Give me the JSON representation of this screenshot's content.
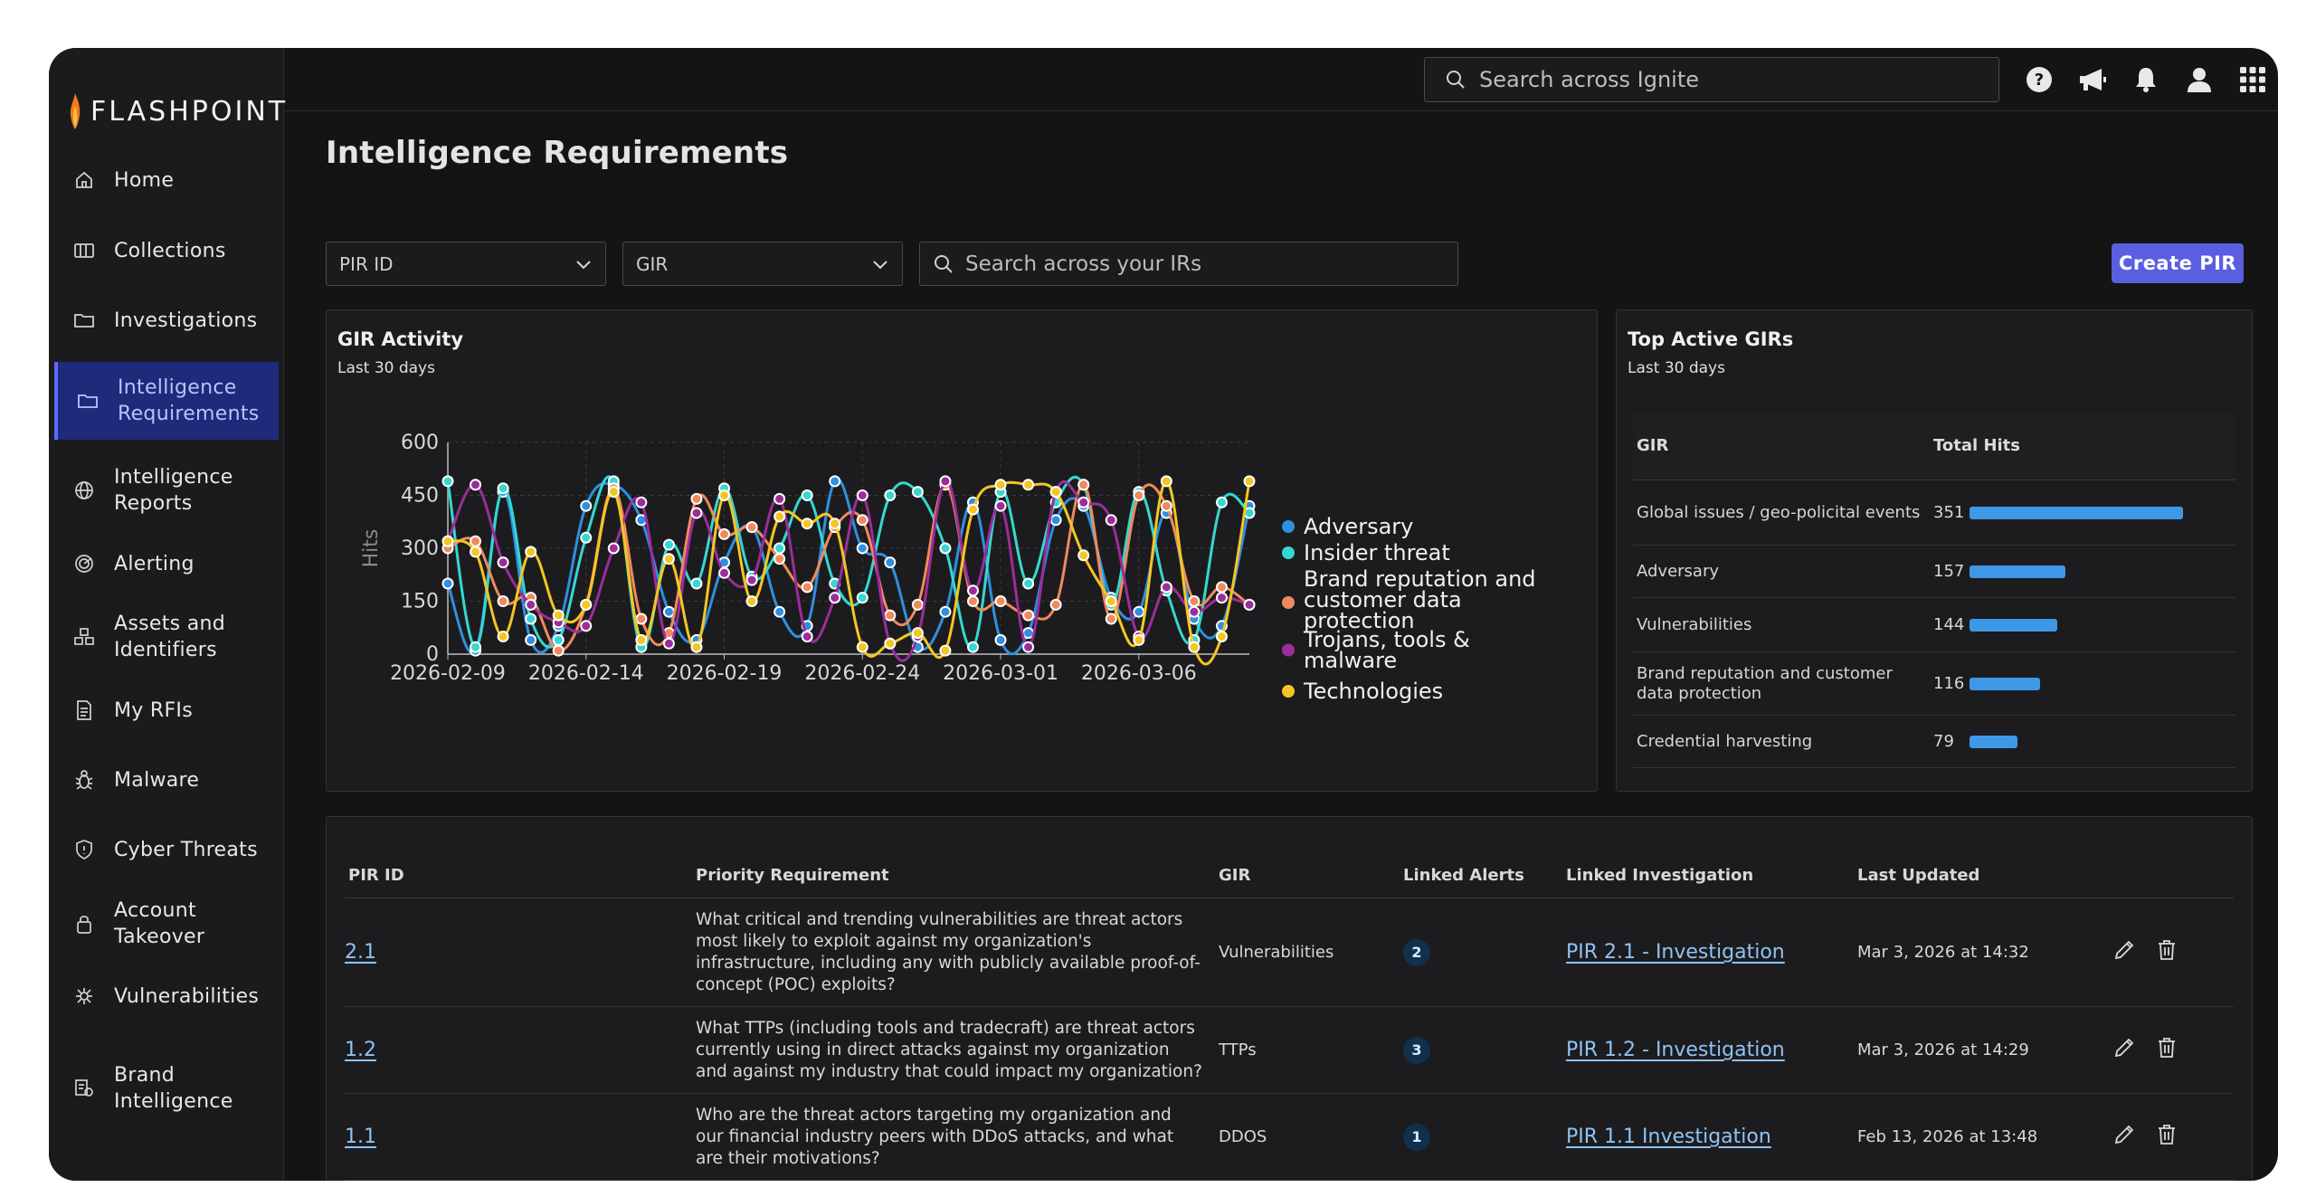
{
  "brand": {
    "name": "FLASHPOINT"
  },
  "sidebar": {
    "items": [
      {
        "label": "Home",
        "icon": "home-icon"
      },
      {
        "label": "Collections",
        "icon": "collections-icon"
      },
      {
        "label": "Investigations",
        "icon": "folder-icon"
      },
      {
        "label": "Intelligence Requirements",
        "icon": "folder-icon",
        "active": true
      },
      {
        "label": "Intelligence Reports",
        "icon": "globe-icon"
      },
      {
        "label": "Alerting",
        "icon": "alerting-icon"
      },
      {
        "label": "Assets and Identifiers",
        "icon": "assets-icon"
      },
      {
        "label": "My RFIs",
        "icon": "document-icon"
      },
      {
        "label": "Malware",
        "icon": "bug-icon"
      },
      {
        "label": "Cyber Threats",
        "icon": "shield-icon"
      },
      {
        "label": "Account Takeover",
        "icon": "lock-icon"
      },
      {
        "label": "Vulnerabilities",
        "icon": "vulnerability-icon"
      },
      {
        "label": "Brand Intelligence",
        "icon": "brand-icon"
      }
    ]
  },
  "topbar": {
    "search_placeholder": "Search across Ignite",
    "icons": [
      "help-icon",
      "announcement-icon",
      "bell-icon",
      "user-icon",
      "apps-grid-icon"
    ]
  },
  "page": {
    "title": "Intelligence Requirements"
  },
  "filters": {
    "pir_id": "PIR ID",
    "gir": "GIR",
    "search_placeholder": "Search across your IRs",
    "create_button": "Create PIR"
  },
  "gir_activity": {
    "title": "GIR Activity",
    "subtitle": "Last 30 days"
  },
  "chart_data": {
    "type": "line",
    "ylabel": "Hits",
    "ylim": [
      0,
      600
    ],
    "yticks": [
      0,
      150,
      300,
      450,
      600
    ],
    "xticks": [
      "2026-02-09",
      "2026-02-14",
      "2026-02-19",
      "2026-02-24",
      "2026-03-01",
      "2026-03-06"
    ],
    "x": [
      "2026-02-09",
      "2026-02-10",
      "2026-02-11",
      "2026-02-12",
      "2026-02-13",
      "2026-02-14",
      "2026-02-15",
      "2026-02-16",
      "2026-02-17",
      "2026-02-18",
      "2026-02-19",
      "2026-02-20",
      "2026-02-21",
      "2026-02-22",
      "2026-02-23",
      "2026-02-24",
      "2026-02-25",
      "2026-02-26",
      "2026-02-27",
      "2026-02-28",
      "2026-03-01",
      "2026-03-02",
      "2026-03-03",
      "2026-03-04",
      "2026-03-05",
      "2026-03-06",
      "2026-03-07",
      "2026-03-08",
      "2026-03-09",
      "2026-03-10"
    ],
    "legend_position": "right",
    "series": [
      {
        "name": "Adversary",
        "color": "#2f8fe0",
        "values": [
          200,
          10,
          460,
          40,
          80,
          420,
          480,
          380,
          120,
          40,
          260,
          360,
          120,
          80,
          490,
          300,
          260,
          20,
          120,
          430,
          40,
          60,
          380,
          420,
          160,
          120,
          400,
          100,
          80,
          420
        ]
      },
      {
        "name": "Insider threat",
        "color": "#36d7d0",
        "values": [
          490,
          20,
          470,
          100,
          40,
          330,
          490,
          20,
          310,
          200,
          470,
          220,
          300,
          450,
          200,
          160,
          450,
          460,
          300,
          20,
          460,
          200,
          430,
          480,
          140,
          460,
          180,
          40,
          430,
          400
        ]
      },
      {
        "name": "Brand reputation and customer data protection",
        "color": "#f08a5d",
        "values": [
          300,
          320,
          150,
          160,
          10,
          140,
          470,
          100,
          60,
          440,
          340,
          360,
          270,
          190,
          360,
          380,
          110,
          140,
          480,
          150,
          150,
          110,
          140,
          480,
          100,
          450,
          420,
          150,
          190,
          140
        ]
      },
      {
        "name": "Trojans, tools & malware",
        "color": "#9b2d9b",
        "values": [
          320,
          480,
          260,
          140,
          90,
          80,
          300,
          430,
          30,
          400,
          230,
          210,
          440,
          50,
          160,
          450,
          30,
          50,
          490,
          180,
          420,
          20,
          460,
          430,
          380,
          50,
          190,
          120,
          160,
          140
        ]
      },
      {
        "name": "Technologies",
        "color": "#f4c624",
        "values": [
          320,
          290,
          50,
          290,
          110,
          140,
          460,
          40,
          270,
          20,
          450,
          150,
          390,
          370,
          370,
          20,
          30,
          60,
          10,
          410,
          480,
          480,
          460,
          280,
          150,
          40,
          490,
          20,
          50,
          490
        ]
      }
    ]
  },
  "top_girs": {
    "title": "Top Active GIRs",
    "subtitle": "Last 30 days",
    "columns": [
      "GIR",
      "Total Hits"
    ],
    "rows": [
      {
        "name": "Global issues / geo-policital events",
        "hits": 351
      },
      {
        "name": "Adversary",
        "hits": 157
      },
      {
        "name": "Vulnerabilities",
        "hits": 144
      },
      {
        "name": "Brand reputation and customer data protection",
        "hits": 116
      },
      {
        "name": "Credential harvesting",
        "hits": 79
      }
    ]
  },
  "pir_table": {
    "columns": [
      "PIR ID",
      "Priority Requirement",
      "GIR",
      "Linked Alerts",
      "Linked Investigation",
      "Last Updated"
    ],
    "rows": [
      {
        "id": "2.1",
        "requirement": "What critical and trending vulnerabilities are threat actors most likely to exploit against my organization's infrastructure, including any with publicly available proof-of-concept (POC) exploits?",
        "gir": "Vulnerabilities",
        "alerts": "2",
        "investigation": "PIR 2.1 - Investigation",
        "updated": "Mar 3, 2026 at 14:32"
      },
      {
        "id": "1.2",
        "requirement": "What TTPs (including tools and tradecraft) are threat actors currently using in direct attacks against my organization and against my industry that could impact my organization?",
        "gir": "TTPs",
        "alerts": "3",
        "investigation": "PIR 1.2 - Investigation",
        "updated": "Mar 3, 2026 at 14:29"
      },
      {
        "id": "1.1",
        "requirement": "Who are the threat actors targeting my organization and our financial industry peers with DDoS attacks, and what are their motivations?",
        "gir": "DDOS",
        "alerts": "1",
        "investigation": "PIR 1.1 Investigation",
        "updated": "Feb 13, 2026 at 13:48"
      }
    ]
  }
}
